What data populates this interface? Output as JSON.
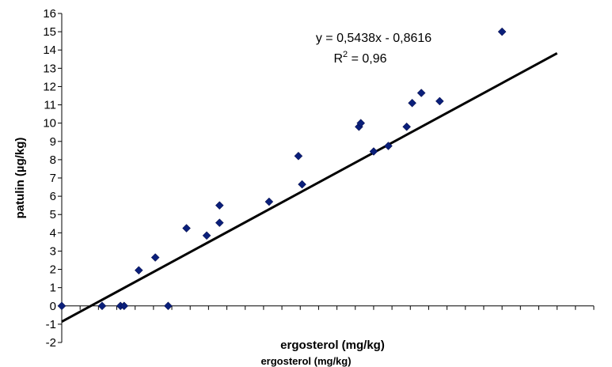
{
  "chart_data": {
    "type": "scatter",
    "xlabel": "ergosterol (mg/kg)",
    "ylabel": "patulin (µg/kg)",
    "xlim": [
      0,
      29
    ],
    "ylim": [
      -2,
      16
    ],
    "yticks": [
      -2,
      -1,
      0,
      1,
      2,
      3,
      4,
      5,
      6,
      7,
      8,
      9,
      10,
      11,
      12,
      13,
      14,
      15,
      16
    ],
    "marker_color": "#0A1F7A",
    "trendline": {
      "slope": 0.5438,
      "intercept": -0.8616,
      "x_start": 0,
      "x_end": 27.0
    },
    "annotation": {
      "equation": "y = 0,5438x - 0,8616",
      "r2_label": "R",
      "r2_exp": "2",
      "r2_value": " = 0,96"
    },
    "points": [
      {
        "x": 0.0,
        "y": 0.0
      },
      {
        "x": 2.2,
        "y": 0.0
      },
      {
        "x": 3.2,
        "y": 0.0
      },
      {
        "x": 3.4,
        "y": 0.0
      },
      {
        "x": 4.2,
        "y": 1.95
      },
      {
        "x": 5.1,
        "y": 2.65
      },
      {
        "x": 5.8,
        "y": 0.0
      },
      {
        "x": 6.8,
        "y": 4.25
      },
      {
        "x": 7.9,
        "y": 3.85
      },
      {
        "x": 8.6,
        "y": 4.55
      },
      {
        "x": 8.6,
        "y": 5.5
      },
      {
        "x": 11.3,
        "y": 5.7
      },
      {
        "x": 12.9,
        "y": 8.2
      },
      {
        "x": 13.1,
        "y": 6.65
      },
      {
        "x": 16.2,
        "y": 9.8
      },
      {
        "x": 16.3,
        "y": 10.0
      },
      {
        "x": 17.0,
        "y": 8.45
      },
      {
        "x": 17.8,
        "y": 8.75
      },
      {
        "x": 18.8,
        "y": 9.8
      },
      {
        "x": 19.1,
        "y": 11.1
      },
      {
        "x": 19.6,
        "y": 11.65
      },
      {
        "x": 20.6,
        "y": 11.2
      },
      {
        "x": 24.0,
        "y": 15.0
      }
    ]
  },
  "footer": {
    "text": "ergosterol (mg/kg)"
  }
}
